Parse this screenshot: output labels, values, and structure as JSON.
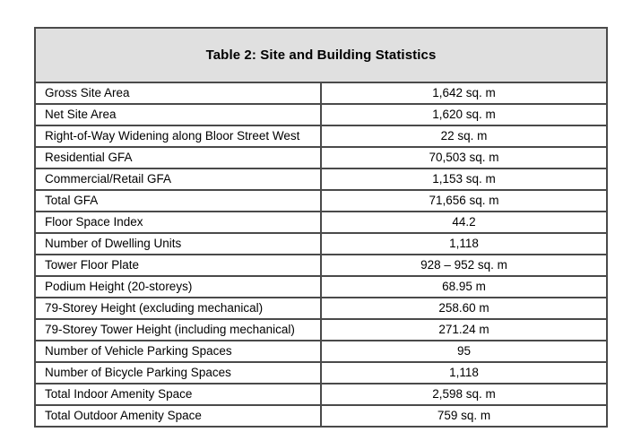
{
  "table": {
    "title": "Table 2: Site and Building Statistics",
    "rows": [
      {
        "label": "Gross Site Area",
        "value": "1,642 sq. m"
      },
      {
        "label": "Net Site Area",
        "value": "1,620 sq. m"
      },
      {
        "label": "Right-of-Way Widening along Bloor Street West",
        "value": "22 sq. m"
      },
      {
        "label": "Residential GFA",
        "value": "70,503 sq. m"
      },
      {
        "label": "Commercial/Retail GFA",
        "value": "1,153 sq. m"
      },
      {
        "label": "Total GFA",
        "value": "71,656 sq. m"
      },
      {
        "label": "Floor Space Index",
        "value": "44.2"
      },
      {
        "label": "Number of Dwelling Units",
        "value": "1,118"
      },
      {
        "label": "Tower Floor Plate",
        "value": "928 – 952 sq. m"
      },
      {
        "label": "Podium Height (20-storeys)",
        "value": "68.95 m"
      },
      {
        "label": "79-Storey Height (excluding mechanical)",
        "value": "258.60 m"
      },
      {
        "label": "79-Storey Tower Height (including mechanical)",
        "value": "271.24 m"
      },
      {
        "label": "Number of Vehicle Parking Spaces",
        "value": "95"
      },
      {
        "label": "Number of Bicycle Parking Spaces",
        "value": "1,118"
      },
      {
        "label": "Total Indoor Amenity Space",
        "value": "2,598 sq. m"
      },
      {
        "label": "Total Outdoor Amenity Space",
        "value": "759 sq. m"
      }
    ]
  },
  "colors": {
    "header_bg": "#e0e0e0",
    "border": "#4a4a4a"
  }
}
